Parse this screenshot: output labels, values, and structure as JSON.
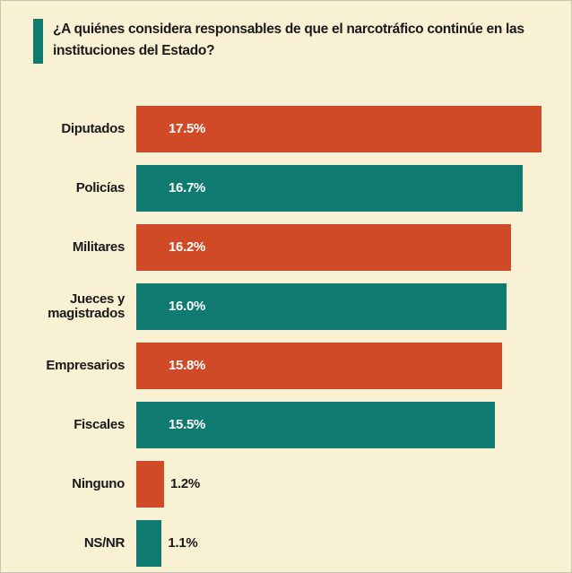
{
  "chart_data": {
    "type": "bar",
    "orientation": "horizontal",
    "title": "¿A quiénes considera responsables de que el narcotráfico continúe en las instituciones del Estado?",
    "categories": [
      "Diputados",
      "Policías",
      "Militares",
      "Jueces y magistrados",
      "Empresarios",
      "Fiscales",
      "Ninguno",
      "NS/NR"
    ],
    "values": [
      17.5,
      16.7,
      16.2,
      16.0,
      15.8,
      15.5,
      1.2,
      1.1
    ],
    "value_labels": [
      "17.5%",
      "16.7%",
      "16.2%",
      "16.0%",
      "15.8%",
      "15.5%",
      "1.2%",
      "1.1%"
    ],
    "colors": [
      "#d04a28",
      "#0f7a70",
      "#d04a28",
      "#0f7a70",
      "#d04a28",
      "#0f7a70",
      "#d04a28",
      "#0f7a70"
    ]
  }
}
